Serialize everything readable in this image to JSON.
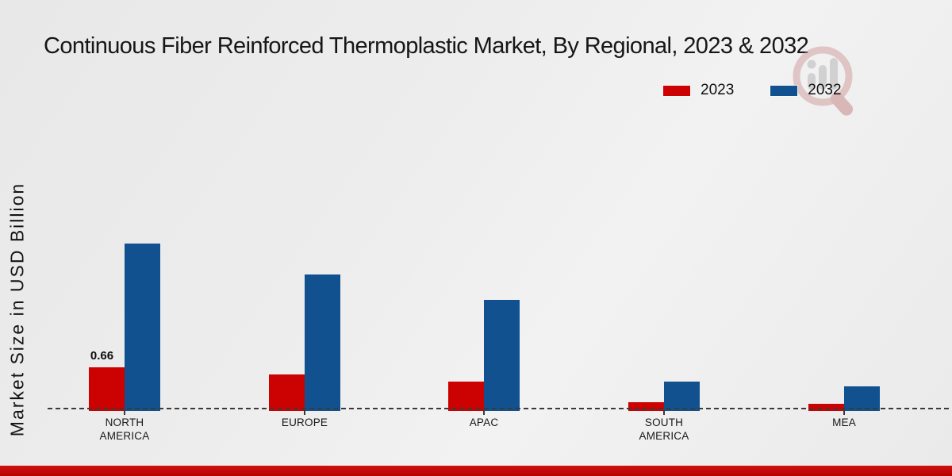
{
  "title": "Continuous Fiber Reinforced Thermoplastic Market, By Regional, 2023 & 2032",
  "colors": {
    "series_2023": "#cc0202",
    "series_2032": "#11518f",
    "footer_red": "#b90404",
    "text": "#161616",
    "baseline": "#3a3a3a"
  },
  "legend": {
    "items": [
      {
        "label": "2023",
        "color": "#cc0202"
      },
      {
        "label": "2032",
        "color": "#11518f"
      }
    ]
  },
  "watermark": {
    "name": "market-research-logo"
  },
  "chart_data": {
    "type": "bar",
    "title": "Continuous Fiber Reinforced Thermoplastic Market, By Regional, 2023 & 2032",
    "xlabel": "",
    "ylabel": "Market Size in USD Billion",
    "categories": [
      "NORTH AMERICA",
      "EUROPE",
      "APAC",
      "SOUTH AMERICA",
      "MEA"
    ],
    "category_lines": [
      [
        "NORTH",
        "AMERICA"
      ],
      [
        "EUROPE"
      ],
      [
        "APAC"
      ],
      [
        "SOUTH",
        "AMERICA"
      ],
      [
        "MEA"
      ]
    ],
    "series": [
      {
        "name": "2023",
        "color": "#cc0202",
        "values": [
          0.66,
          0.55,
          0.43,
          0.1,
          0.08
        ]
      },
      {
        "name": "2032",
        "color": "#11518f",
        "values": [
          2.63,
          2.14,
          1.74,
          0.43,
          0.36
        ]
      }
    ],
    "bar_labels": [
      {
        "series": "2023",
        "category": "NORTH AMERICA",
        "text": "0.66"
      }
    ],
    "ylim": [
      0,
      2.8
    ],
    "grid": false,
    "baseline_style": "dashed",
    "legend_position": "top-right"
  }
}
